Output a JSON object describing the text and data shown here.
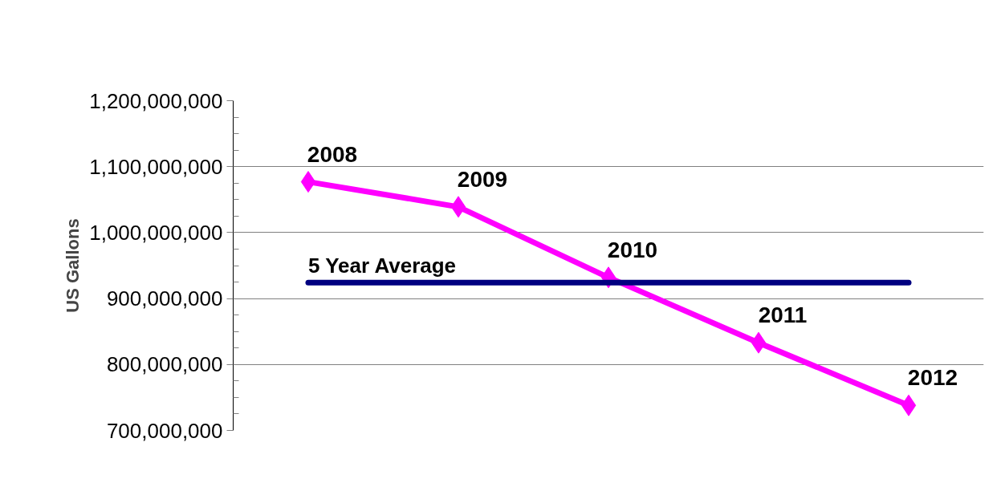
{
  "chart_data": {
    "type": "line",
    "ylabel": "US Gallons",
    "categories": [
      "2008",
      "2009",
      "2010",
      "2011",
      "2012"
    ],
    "series": [
      {
        "color": "#ff00ff",
        "values": [
          1077000000,
          1039000000,
          932000000,
          833000000,
          738000000
        ],
        "marker": "diamond"
      },
      {
        "name": "5 Year Average",
        "color": "#000080",
        "values": [
          924000000,
          924000000,
          924000000,
          924000000,
          924000000
        ],
        "marker": "none"
      }
    ],
    "ylim": [
      700000000,
      1200000000
    ],
    "yticks": [
      {
        "value": 700000000,
        "label": "700,000,000"
      },
      {
        "value": 800000000,
        "label": "800,000,000"
      },
      {
        "value": 900000000,
        "label": "900,000,000"
      },
      {
        "value": 1000000000,
        "label": "1,000,000,000"
      },
      {
        "value": 1100000000,
        "label": "1,100,000,000"
      },
      {
        "value": 1200000000,
        "label": "1,200,000,000"
      }
    ],
    "grid": "y",
    "tick_labels": "y"
  }
}
